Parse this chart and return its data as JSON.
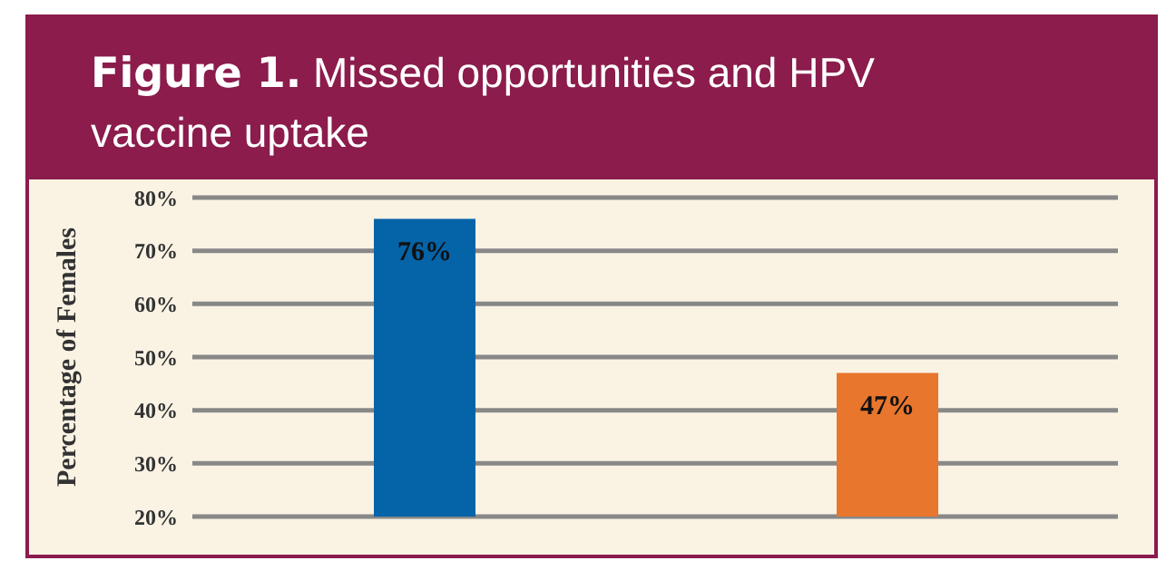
{
  "chart_data": {
    "type": "bar",
    "title": "Figure 1. Missed opportunities and HPV vaccine uptake",
    "ylabel": "Percentage of Females",
    "categories": [
      null,
      null
    ],
    "values": [
      76,
      47
    ],
    "colors": [
      "#0563a8",
      "#e8762d"
    ],
    "value_labels": [
      "76%",
      "47%"
    ],
    "ylim": [
      20,
      80
    ],
    "yticks": [
      {
        "value": 20,
        "label": "20%"
      },
      {
        "value": 30,
        "label": "30%"
      },
      {
        "value": 40,
        "label": "40%"
      },
      {
        "value": 50,
        "label": "50%"
      },
      {
        "value": 60,
        "label": "60%"
      },
      {
        "value": 70,
        "label": "70%"
      },
      {
        "value": 80,
        "label": "80%"
      }
    ],
    "grid": "y"
  }
}
